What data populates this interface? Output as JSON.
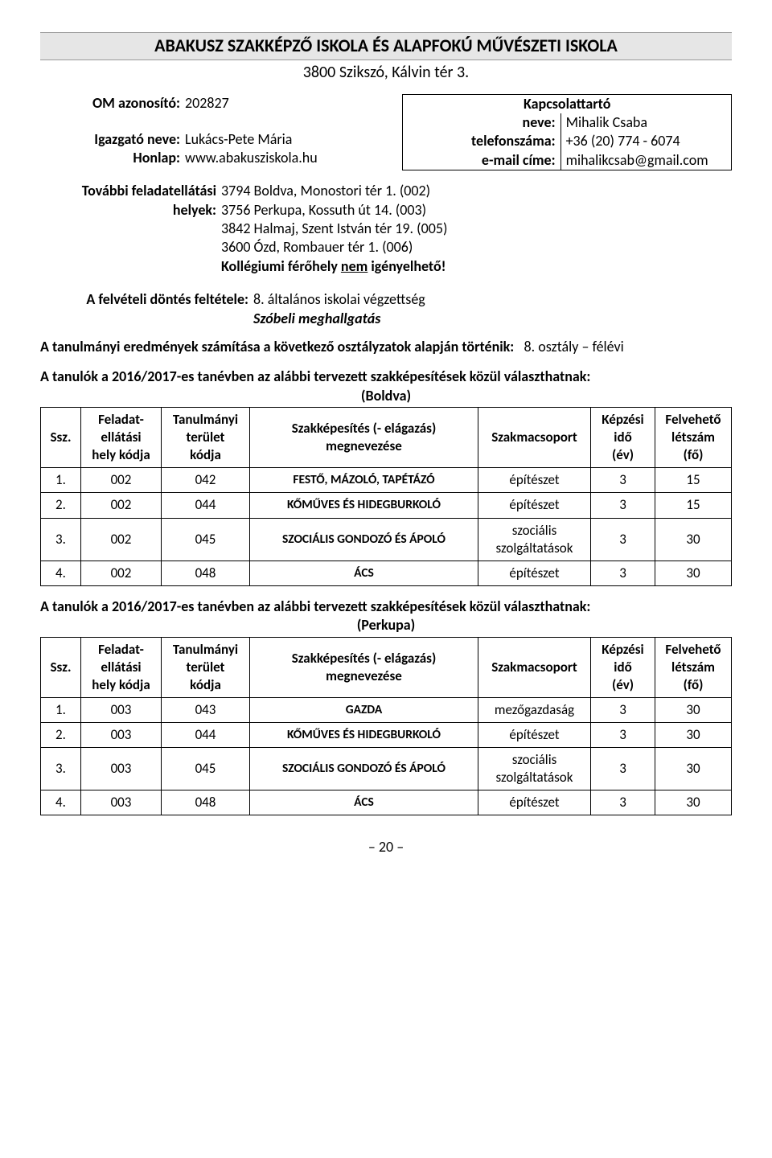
{
  "header": {
    "title": "ABAKUSZ SZAKKÉPZŐ ISKOLA ÉS ALAPFOKÚ MŰVÉSZETI ISKOLA",
    "address": "3800 Szikszó, Kálvin tér 3."
  },
  "left_info": {
    "om_label": "OM azonosító:",
    "om_value": "202827",
    "director_label": "Igazgató neve:",
    "director_value": "Lukács-Pete Mária",
    "website_label": "Honlap:",
    "website_value": "www.abakusziskola.hu"
  },
  "contact": {
    "title": "Kapcsolattartó",
    "name_label": "neve:",
    "name_value": "Mihalik Csaba",
    "phone_label": "telefonszáma:",
    "phone_value": "+36 (20) 774 - 6074",
    "email_label": "e-mail címe:",
    "email_value": "mihalikcsab@gmail.com"
  },
  "further": {
    "label1": "További feladatellátási",
    "label2": "helyek:",
    "lines": [
      "3794 Boldva, Monostori tér 1. (002)",
      "3756 Perkupa, Kossuth út 14. (003)",
      "3842 Halmaj, Szent István tér 19. (005)",
      "3600 Ózd, Rombauer tér 1. (006)"
    ],
    "dorm_prefix": "Kollégiumi férőhely ",
    "dorm_under": "nem",
    "dorm_suffix": " igényelhető!"
  },
  "admission": {
    "label": "A felvételi döntés feltétele:",
    "lines": [
      "8. általános iskolai végzettség",
      "Szóbeli meghallgatás"
    ]
  },
  "results_line": {
    "prefix": "A tanulmányi eredmények számítása a következő osztályzatok alapján történik:",
    "suffix": "8. osztály – félévi"
  },
  "tables_intro": "A tanulók a 2016/2017-es tanévben az alábbi tervezett szakképesítések közül választhatnak:",
  "columns": {
    "ssz": "Ssz.",
    "feladat": "Feladat-\nellátási\nhely kódja",
    "terulet": "Tanulmányi\nterület\nkódja",
    "szak": "Szakképesítés (- elágazás)\nmegnevezése",
    "csoport": "Szakmacsoport",
    "ido": "Képzési\nidő\n(év)",
    "letszam": "Felvehető\nlétszám\n(fő)"
  },
  "table1": {
    "sub": "(Boldva)",
    "rows": [
      {
        "n": "1.",
        "f": "002",
        "t": "042",
        "name": "FESTŐ, MÁZOLÓ, TAPÉTÁZÓ",
        "cs": "építészet",
        "ido": "3",
        "l": "15"
      },
      {
        "n": "2.",
        "f": "002",
        "t": "044",
        "name": "KŐMŰVES ÉS HIDEGBURKOLÓ",
        "cs": "építészet",
        "ido": "3",
        "l": "15"
      },
      {
        "n": "3.",
        "f": "002",
        "t": "045",
        "name": "SZOCIÁLIS GONDOZÓ ÉS ÁPOLÓ",
        "cs": "szociális\nszolgáltatások",
        "ido": "3",
        "l": "30"
      },
      {
        "n": "4.",
        "f": "002",
        "t": "048",
        "name": "ÁCS",
        "cs": "építészet",
        "ido": "3",
        "l": "30"
      }
    ]
  },
  "table2": {
    "sub": "(Perkupa)",
    "rows": [
      {
        "n": "1.",
        "f": "003",
        "t": "043",
        "name": "GAZDA",
        "cs": "mezőgazdaság",
        "ido": "3",
        "l": "30"
      },
      {
        "n": "2.",
        "f": "003",
        "t": "044",
        "name": "KŐMŰVES ÉS HIDEGBURKOLÓ",
        "cs": "építészet",
        "ido": "3",
        "l": "30"
      },
      {
        "n": "3.",
        "f": "003",
        "t": "045",
        "name": "SZOCIÁLIS GONDOZÓ ÉS ÁPOLÓ",
        "cs": "szociális\nszolgáltatások",
        "ido": "3",
        "l": "30"
      },
      {
        "n": "4.",
        "f": "003",
        "t": "048",
        "name": "ÁCS",
        "cs": "építészet",
        "ido": "3",
        "l": "30"
      }
    ]
  },
  "page_number": "20"
}
